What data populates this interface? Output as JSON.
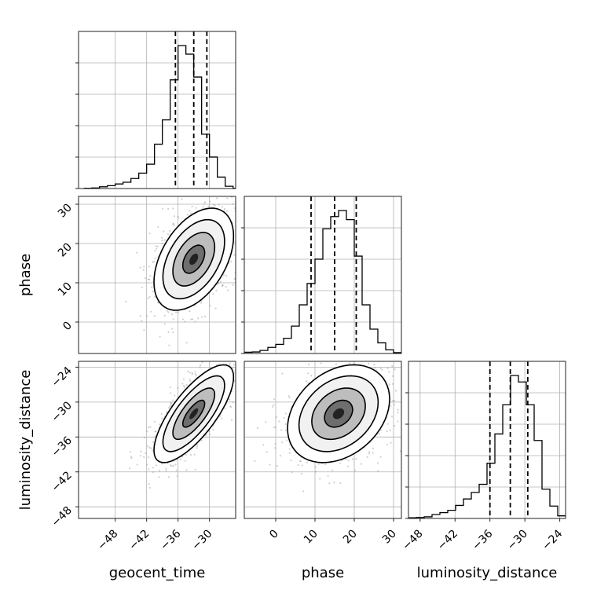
{
  "chart_data": {
    "type": "corner",
    "parameters": [
      "geocent_time",
      "phase",
      "luminosity_distance"
    ],
    "ranges": {
      "geocent_time": [
        -55,
        -25
      ],
      "phase": [
        -8,
        32
      ],
      "luminosity_distance": [
        -50,
        -23
      ]
    },
    "ticks": {
      "geocent_time": [
        -48,
        -42,
        -36,
        -30
      ],
      "phase": [
        0,
        10,
        20,
        30
      ],
      "luminosity_distance": [
        -48,
        -42,
        -36,
        -30,
        -24
      ]
    },
    "grid": true,
    "marginals": [
      {
        "parameter": "geocent_time",
        "quantile_lines": [
          -36.5,
          -33,
          -30.5
        ],
        "bin_edges": [
          -54,
          -52.5,
          -51,
          -49.5,
          -48,
          -46.5,
          -45,
          -43.5,
          -42,
          -40.5,
          -39,
          -37.5,
          -36,
          -34.5,
          -33,
          -31.5,
          -30,
          -28.5,
          -27,
          -25.5,
          -24
        ],
        "counts": [
          0.1,
          0.2,
          0.6,
          1,
          1.6,
          2.2,
          3.5,
          5.4,
          8.5,
          15.5,
          24,
          38,
          50,
          47,
          39,
          19,
          11,
          4,
          0.8,
          0.1
        ]
      },
      {
        "parameter": "phase",
        "quantile_lines": [
          9,
          15,
          20.5
        ],
        "bin_edges": [
          -8,
          -6,
          -4,
          -2,
          0,
          2,
          4,
          6,
          8,
          10,
          12,
          14,
          16,
          18,
          20,
          22,
          24,
          26,
          28,
          30,
          32
        ],
        "counts": [
          0.4,
          0.5,
          1,
          2,
          3,
          5,
          9,
          16,
          23,
          31,
          41,
          45,
          47,
          44,
          32,
          16,
          8,
          3.5,
          1.2,
          0.3
        ]
      },
      {
        "parameter": "luminosity_distance",
        "quantile_lines": [
          -36,
          -32.5,
          -29.5
        ],
        "bin_edges": [
          -50,
          -48.65,
          -47.3,
          -45.95,
          -44.6,
          -43.25,
          -41.9,
          -40.55,
          -39.2,
          -37.85,
          -36.5,
          -35.15,
          -33.8,
          -32.45,
          -31.1,
          -29.75,
          -28.4,
          -27.05,
          -25.7,
          -24.35,
          -23
        ],
        "counts": [
          0.2,
          0.3,
          0.5,
          1.2,
          1.8,
          2.5,
          4,
          6,
          8,
          10.5,
          17,
          26,
          35,
          44,
          42,
          35,
          24,
          9,
          3.8,
          0.8
        ]
      }
    ],
    "pairs": [
      {
        "x": "geocent_time",
        "y": "phase",
        "peak": [
          -33,
          16
        ],
        "sd": [
          3.8,
          6.5
        ],
        "corr": 0.45
      },
      {
        "x": "geocent_time",
        "y": "luminosity_distance",
        "peak": [
          -33,
          -32
        ],
        "sd": [
          3.8,
          4.2
        ],
        "corr": 0.75
      },
      {
        "x": "phase",
        "y": "luminosity_distance",
        "peak": [
          16,
          -32
        ],
        "sd": [
          6.5,
          4.2
        ],
        "corr": 0.3
      }
    ]
  }
}
